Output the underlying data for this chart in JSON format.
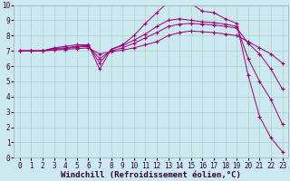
{
  "background_color": "#cce8f0",
  "grid_color": "#b0d8c8",
  "line_color": "#990077",
  "xlim": [
    -0.5,
    23.5
  ],
  "ylim": [
    0,
    10
  ],
  "xticks": [
    0,
    1,
    2,
    3,
    4,
    5,
    6,
    7,
    8,
    9,
    10,
    11,
    12,
    13,
    14,
    15,
    16,
    17,
    18,
    19,
    20,
    21,
    22,
    23
  ],
  "yticks": [
    0,
    1,
    2,
    3,
    4,
    5,
    6,
    7,
    8,
    9,
    10
  ],
  "xlabel": "Windchill (Refroidissement éolien,°C)",
  "series": [
    {
      "x": [
        0,
        1,
        2,
        3,
        4,
        5,
        6,
        7,
        8,
        9,
        10,
        11,
        12,
        13,
        14,
        15,
        16,
        17,
        18,
        19,
        20,
        21,
        22,
        23
      ],
      "y": [
        7.0,
        7.0,
        7.0,
        7.2,
        7.3,
        7.4,
        7.4,
        5.8,
        7.1,
        7.4,
        8.0,
        8.8,
        9.5,
        10.2,
        10.1,
        10.1,
        9.6,
        9.5,
        9.1,
        8.8,
        5.4,
        2.7,
        1.3,
        0.4
      ]
    },
    {
      "x": [
        0,
        1,
        2,
        3,
        4,
        5,
        6,
        7,
        8,
        9,
        10,
        11,
        12,
        13,
        14,
        15,
        16,
        17,
        18,
        19,
        20,
        21,
        22,
        23
      ],
      "y": [
        7.0,
        7.0,
        7.0,
        7.15,
        7.2,
        7.3,
        7.35,
        6.2,
        7.1,
        7.35,
        7.7,
        8.1,
        8.6,
        9.0,
        9.1,
        9.0,
        8.9,
        8.85,
        8.75,
        8.6,
        6.5,
        5.0,
        3.8,
        2.2
      ]
    },
    {
      "x": [
        0,
        1,
        2,
        3,
        4,
        5,
        6,
        7,
        8,
        9,
        10,
        11,
        12,
        13,
        14,
        15,
        16,
        17,
        18,
        19,
        20,
        21,
        22,
        23
      ],
      "y": [
        7.0,
        7.0,
        7.0,
        7.1,
        7.15,
        7.25,
        7.3,
        6.5,
        7.0,
        7.2,
        7.5,
        7.85,
        8.2,
        8.6,
        8.75,
        8.8,
        8.75,
        8.7,
        8.6,
        8.5,
        7.5,
        6.8,
        5.8,
        4.5
      ]
    },
    {
      "x": [
        0,
        1,
        2,
        3,
        4,
        5,
        6,
        7,
        8,
        9,
        10,
        11,
        12,
        13,
        14,
        15,
        16,
        17,
        18,
        19,
        20,
        21,
        22,
        23
      ],
      "y": [
        7.0,
        7.0,
        7.0,
        7.05,
        7.1,
        7.15,
        7.2,
        6.8,
        6.95,
        7.05,
        7.2,
        7.4,
        7.6,
        8.0,
        8.2,
        8.3,
        8.25,
        8.2,
        8.1,
        8.0,
        7.6,
        7.2,
        6.8,
        6.2
      ]
    }
  ],
  "tick_fontsize": 5.5,
  "axis_fontsize": 6.5
}
